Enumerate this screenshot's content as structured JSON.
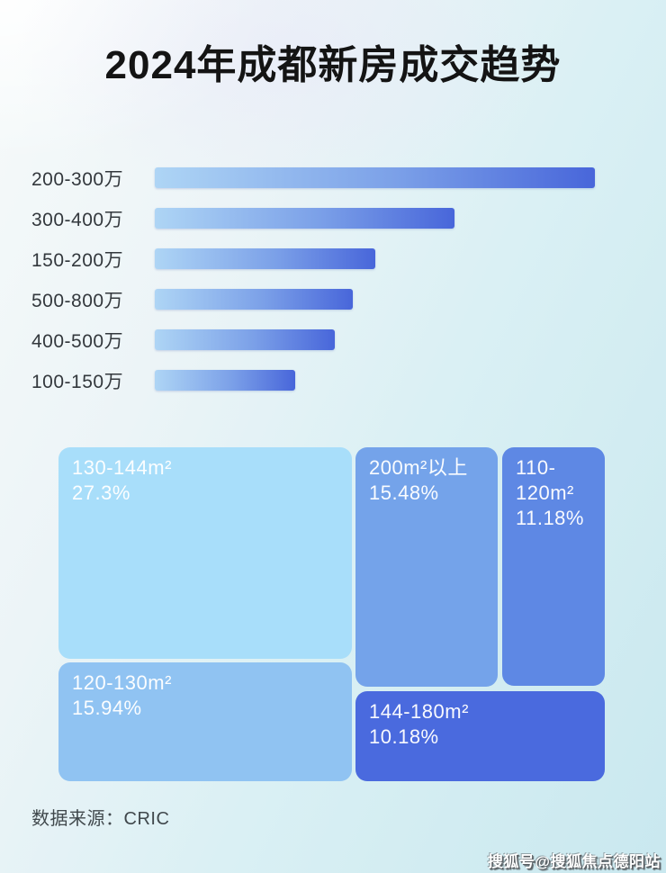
{
  "title": "2024年成都新房成交趋势",
  "chart_data": [
    {
      "type": "bar",
      "orientation": "horizontal",
      "title": "价格段成交分布（无数值轴，按条长比较）",
      "categories": [
        "200-300万",
        "300-400万",
        "150-200万",
        "500-800万",
        "400-500万",
        "100-150万"
      ],
      "values": [
        100,
        68,
        50,
        45,
        41,
        32
      ],
      "value_unit": "relative-length-%-of-longest-bar",
      "xlabel": "",
      "ylabel": "",
      "grid": false,
      "legend": false,
      "bar_gradient": [
        "#aed5f5",
        "#4866da"
      ]
    },
    {
      "type": "treemap",
      "title": "户型面积段成交占比",
      "legend": false,
      "items": [
        {
          "label": "130-144m²",
          "value": "27.3%",
          "color": "#a8defa"
        },
        {
          "label": "120-130m²",
          "value": "15.94%",
          "color": "#90c3f2"
        },
        {
          "label": "200m²以上",
          "value": "15.48%",
          "color": "#74a3ea"
        },
        {
          "label": "110-120m²",
          "value": "11.18%",
          "color": "#5e88e4"
        },
        {
          "label": "144-180m²",
          "value": "10.18%",
          "color": "#4a6ade"
        }
      ]
    }
  ],
  "footer": {
    "source_label": "数据来源：CRIC"
  },
  "watermark": "搜狐号@搜狐焦点德阳站",
  "colors": {
    "background_start": "#f6fafa",
    "background_end": "#c9e8ef",
    "title_text": "#141414",
    "bar_label_text": "#33383d"
  }
}
